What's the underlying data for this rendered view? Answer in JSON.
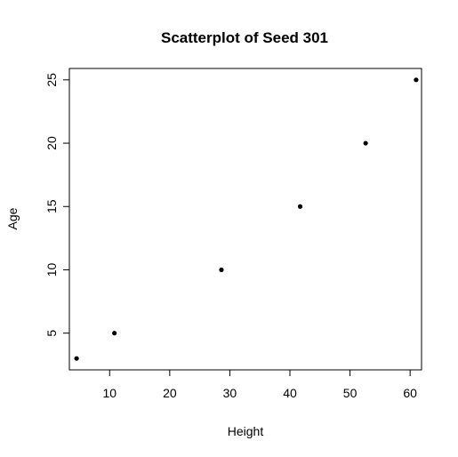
{
  "chart_data": {
    "type": "scatter",
    "title": "Scatterplot of Seed 301",
    "xlabel": "Height",
    "ylabel": "Age",
    "xlim": [
      3.3,
      61.9
    ],
    "ylim": [
      2.1,
      25.9
    ],
    "x_ticks": [
      10,
      20,
      30,
      40,
      50,
      60
    ],
    "y_ticks": [
      5,
      10,
      15,
      20,
      25
    ],
    "grid": false,
    "legend": "none",
    "point_color": "#000000",
    "points": [
      {
        "x": 4.5,
        "y": 3
      },
      {
        "x": 10.8,
        "y": 5
      },
      {
        "x": 28.6,
        "y": 10
      },
      {
        "x": 41.7,
        "y": 15
      },
      {
        "x": 52.6,
        "y": 20
      },
      {
        "x": 61.0,
        "y": 25
      }
    ]
  }
}
